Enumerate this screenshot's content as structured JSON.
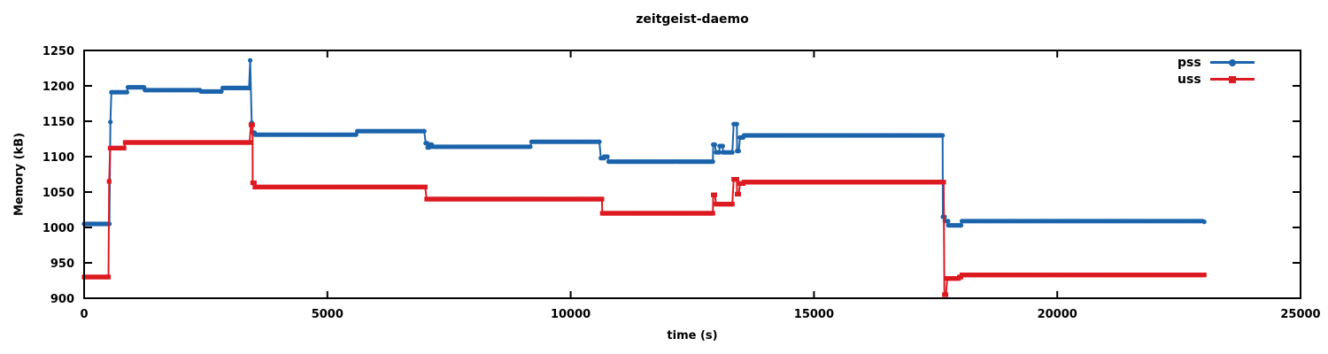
{
  "chart_data": {
    "type": "line",
    "title": "zeitgeist-daemo",
    "xlabel": "time (s)",
    "ylabel": "Memory (kB)",
    "xlim": [
      0,
      25000
    ],
    "ylim": [
      900,
      1250
    ],
    "xticks": [
      0,
      5000,
      10000,
      15000,
      20000,
      25000
    ],
    "yticks": [
      900,
      950,
      1000,
      1050,
      1100,
      1150,
      1200,
      1250
    ],
    "grid": false,
    "legend_position": "top-right-inside",
    "sample_interval_s": 33,
    "series": [
      {
        "name": "pss",
        "color": "#1b63ab",
        "marker": "circle",
        "breakpoints": [
          [
            0,
            1005
          ],
          [
            520,
            1005
          ],
          [
            540,
            1149
          ],
          [
            560,
            1191
          ],
          [
            880,
            1191
          ],
          [
            900,
            1198
          ],
          [
            1230,
            1198
          ],
          [
            1250,
            1194
          ],
          [
            2380,
            1194
          ],
          [
            2400,
            1192
          ],
          [
            2820,
            1192
          ],
          [
            2850,
            1197
          ],
          [
            3390,
            1197
          ],
          [
            3413,
            1236
          ],
          [
            3445,
            1148
          ],
          [
            3470,
            1134
          ],
          [
            3520,
            1131
          ],
          [
            5590,
            1131
          ],
          [
            5615,
            1136
          ],
          [
            6990,
            1136
          ],
          [
            7020,
            1119
          ],
          [
            7060,
            1113
          ],
          [
            7110,
            1117
          ],
          [
            7160,
            1114
          ],
          [
            9170,
            1114
          ],
          [
            9195,
            1121
          ],
          [
            10590,
            1121
          ],
          [
            10620,
            1098
          ],
          [
            10690,
            1100
          ],
          [
            10780,
            1093
          ],
          [
            12890,
            1093
          ],
          [
            12930,
            1117
          ],
          [
            12990,
            1106
          ],
          [
            13060,
            1115
          ],
          [
            13130,
            1106
          ],
          [
            13290,
            1106
          ],
          [
            13350,
            1146
          ],
          [
            13420,
            1108
          ],
          [
            13480,
            1127
          ],
          [
            13560,
            1130
          ],
          [
            17610,
            1130
          ],
          [
            17650,
            1015
          ],
          [
            17690,
            1009
          ],
          [
            17760,
            1003
          ],
          [
            17990,
            1003
          ],
          [
            18040,
            1009
          ],
          [
            23020,
            1008
          ]
        ]
      },
      {
        "name": "uss",
        "color": "#dc1a21",
        "marker": "square",
        "breakpoints": [
          [
            0,
            930
          ],
          [
            500,
            930
          ],
          [
            515,
            1065
          ],
          [
            535,
            1112
          ],
          [
            820,
            1112
          ],
          [
            845,
            1120
          ],
          [
            3400,
            1120
          ],
          [
            3430,
            1145
          ],
          [
            3465,
            1063
          ],
          [
            3510,
            1057
          ],
          [
            7010,
            1057
          ],
          [
            7040,
            1040
          ],
          [
            10610,
            1040
          ],
          [
            10650,
            1020
          ],
          [
            12890,
            1020
          ],
          [
            12930,
            1046
          ],
          [
            12990,
            1033
          ],
          [
            13290,
            1033
          ],
          [
            13350,
            1068
          ],
          [
            13420,
            1047
          ],
          [
            13480,
            1062
          ],
          [
            13560,
            1064
          ],
          [
            17600,
            1064
          ],
          [
            17680,
            905
          ],
          [
            17740,
            928
          ],
          [
            17990,
            930
          ],
          [
            18040,
            933
          ],
          [
            23020,
            933
          ]
        ]
      }
    ]
  },
  "colors": {
    "background": "#ffffff",
    "axis": "#000000",
    "pss": "#1b63ab",
    "uss": "#dc1a21"
  }
}
